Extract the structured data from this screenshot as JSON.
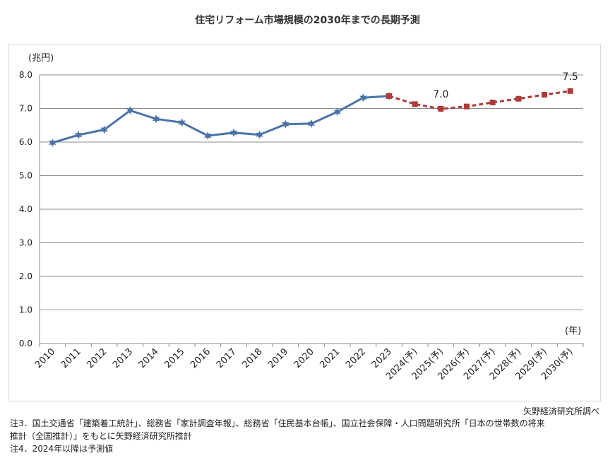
{
  "chart_data": {
    "type": "line",
    "title": "住宅リフォーム市場規模の2030年までの長期予測",
    "ylabel": "(兆円)",
    "xlabel": "(年)",
    "ylim": [
      0,
      8
    ],
    "yticks": [
      "0.0",
      "1.0",
      "2.0",
      "3.0",
      "4.0",
      "5.0",
      "6.0",
      "7.0",
      "8.0"
    ],
    "categories": [
      "2010",
      "2011",
      "2012",
      "2013",
      "2014",
      "2015",
      "2016",
      "2017",
      "2018",
      "2019",
      "2020",
      "2021",
      "2022",
      "2023",
      "2024(予)",
      "2025(予)",
      "2026(予)",
      "2027(予)",
      "2028(予)",
      "2029(予)",
      "2030(予)"
    ],
    "series": [
      {
        "style": "solid",
        "color": "#4a74a8",
        "marker": "star",
        "values": [
          5.98,
          6.21,
          6.37,
          6.94,
          6.69,
          6.58,
          6.19,
          6.28,
          6.22,
          6.53,
          6.55,
          6.9,
          7.32,
          7.37,
          null,
          null,
          null,
          null,
          null,
          null,
          null
        ]
      },
      {
        "style": "dashed",
        "color": "#b03a3a",
        "marker": "square",
        "values": [
          null,
          null,
          null,
          null,
          null,
          null,
          null,
          null,
          null,
          null,
          null,
          null,
          null,
          7.37,
          7.13,
          6.99,
          7.06,
          7.18,
          7.29,
          7.41,
          7.52
        ]
      }
    ],
    "annotations": [
      {
        "category": "2025(予)",
        "text": "7.0"
      },
      {
        "category": "2030(予)",
        "text": "7.5"
      }
    ],
    "grid": true
  },
  "source": "矢野経済研究所調べ",
  "notes": [
    "注3．国土交通省「建築着工統計」、総務省「家計調査年報」、総務省「住民基本台帳」、国立社会保障・人口問題研究所「日本の世帯数の将来",
    "推計（全国推計）」をもとに矢野経済研究所推計",
    "注4．2024年以降は予測値"
  ]
}
